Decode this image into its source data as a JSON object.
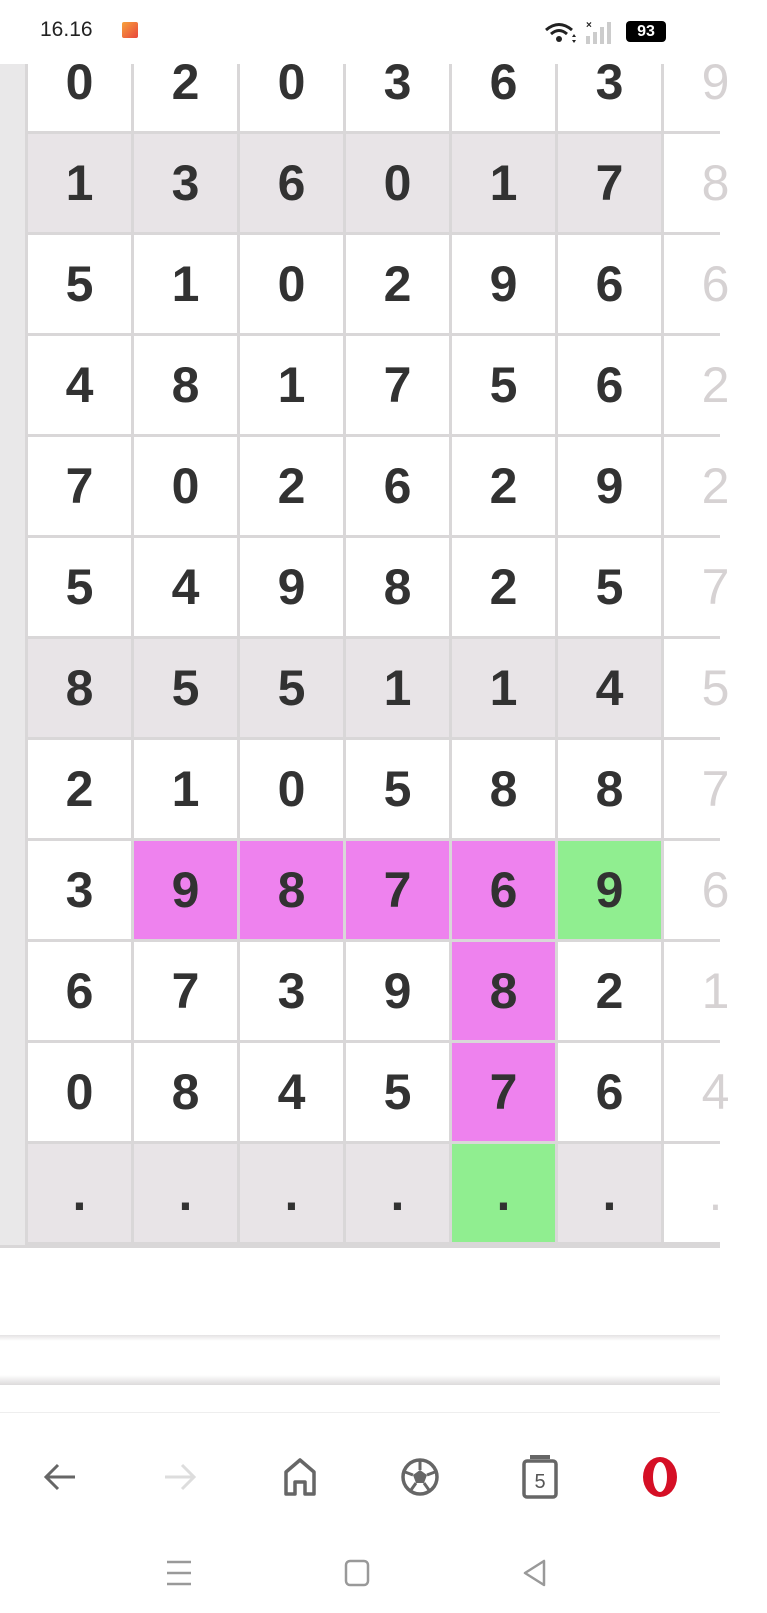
{
  "status_bar": {
    "time": "16.16",
    "battery": "93"
  },
  "grid": {
    "rows": [
      {
        "shaded": false,
        "cells": [
          "0",
          "2",
          "0",
          "3",
          "6",
          "3",
          "9"
        ]
      },
      {
        "shaded": true,
        "cells": [
          "1",
          "3",
          "6",
          "0",
          "1",
          "7",
          "8"
        ]
      },
      {
        "shaded": false,
        "cells": [
          "5",
          "1",
          "0",
          "2",
          "9",
          "6",
          "6"
        ]
      },
      {
        "shaded": false,
        "cells": [
          "4",
          "8",
          "1",
          "7",
          "5",
          "6",
          "2"
        ]
      },
      {
        "shaded": false,
        "cells": [
          "7",
          "0",
          "2",
          "6",
          "2",
          "9",
          "2"
        ]
      },
      {
        "shaded": false,
        "cells": [
          "5",
          "4",
          "9",
          "8",
          "2",
          "5",
          "7"
        ]
      },
      {
        "shaded": true,
        "cells": [
          "8",
          "5",
          "5",
          "1",
          "1",
          "4",
          "5"
        ]
      },
      {
        "shaded": false,
        "cells": [
          "2",
          "1",
          "0",
          "5",
          "8",
          "8",
          "7"
        ]
      },
      {
        "shaded": false,
        "cells": [
          "3",
          "9",
          "8",
          "7",
          "6",
          "9",
          "6"
        ]
      },
      {
        "shaded": false,
        "cells": [
          "6",
          "7",
          "3",
          "9",
          "8",
          "2",
          "1"
        ]
      },
      {
        "shaded": false,
        "cells": [
          "0",
          "8",
          "4",
          "5",
          "7",
          "6",
          "4"
        ]
      },
      {
        "shaded": true,
        "cells": [
          ".",
          ".",
          ".",
          ".",
          ".",
          ".",
          "."
        ]
      }
    ],
    "highlights": [
      {
        "row": 8,
        "col": 1,
        "color": "#ee82ee"
      },
      {
        "row": 8,
        "col": 2,
        "color": "#ee82ee"
      },
      {
        "row": 8,
        "col": 3,
        "color": "#ee82ee"
      },
      {
        "row": 8,
        "col": 4,
        "color": "#ee82ee"
      },
      {
        "row": 8,
        "col": 5,
        "color": "#90ee90"
      },
      {
        "row": 9,
        "col": 4,
        "color": "#ee82ee"
      },
      {
        "row": 10,
        "col": 4,
        "color": "#ee82ee"
      },
      {
        "row": 11,
        "col": 4,
        "color": "#90ee90"
      }
    ]
  },
  "browser_nav": {
    "tab_count": "5",
    "brand_color": "#d50f25"
  }
}
